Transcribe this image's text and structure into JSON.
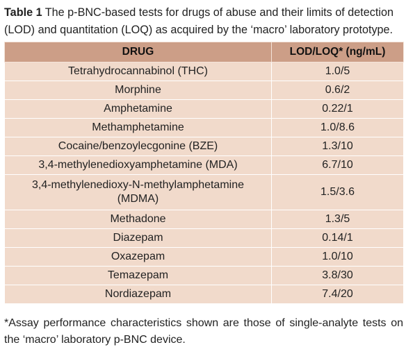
{
  "caption": {
    "label": "Table 1",
    "text": " The p-BNC-based tests for drugs of abuse and their limits of detection (LOD) and quantitation (LOQ) as acquired by the ‘macro’ laboratory prototype."
  },
  "table": {
    "headers": [
      "DRUG",
      "LOD/LOQ* (ng/mL)"
    ],
    "rows": [
      {
        "drug": "Tetrahydrocannabinol (THC)",
        "value": "1.0/5"
      },
      {
        "drug": "Morphine",
        "value": "0.6/2"
      },
      {
        "drug": "Amphetamine",
        "value": "0.22/1"
      },
      {
        "drug": "Methamphetamine",
        "value": "1.0/8.6"
      },
      {
        "drug": "Cocaine/benzoylecgonine (BZE)",
        "value": "1.3/10"
      },
      {
        "drug": "3,4-methylenedioxyamphetamine (MDA)",
        "value": "6.7/10"
      },
      {
        "drug": "3,4-methylenedioxy-N-methylamphetamine (MDMA)",
        "value": "1.5/3.6"
      },
      {
        "drug": "Methadone",
        "value": "1.3/5"
      },
      {
        "drug": "Diazepam",
        "value": "0.14/1"
      },
      {
        "drug": "Oxazepam",
        "value": "1.0/10"
      },
      {
        "drug": "Temazepam",
        "value": "3.8/30"
      },
      {
        "drug": "Nordiazepam",
        "value": "7.4/20"
      }
    ]
  },
  "footnote": "*Assay performance characteristics shown are those of single-analyte tests on the ‘macro’ laboratory p-BNC device.",
  "colors": {
    "header_bg": "#cc9e87",
    "row_bg": "#f1dacb",
    "divider": "#ffffff"
  }
}
